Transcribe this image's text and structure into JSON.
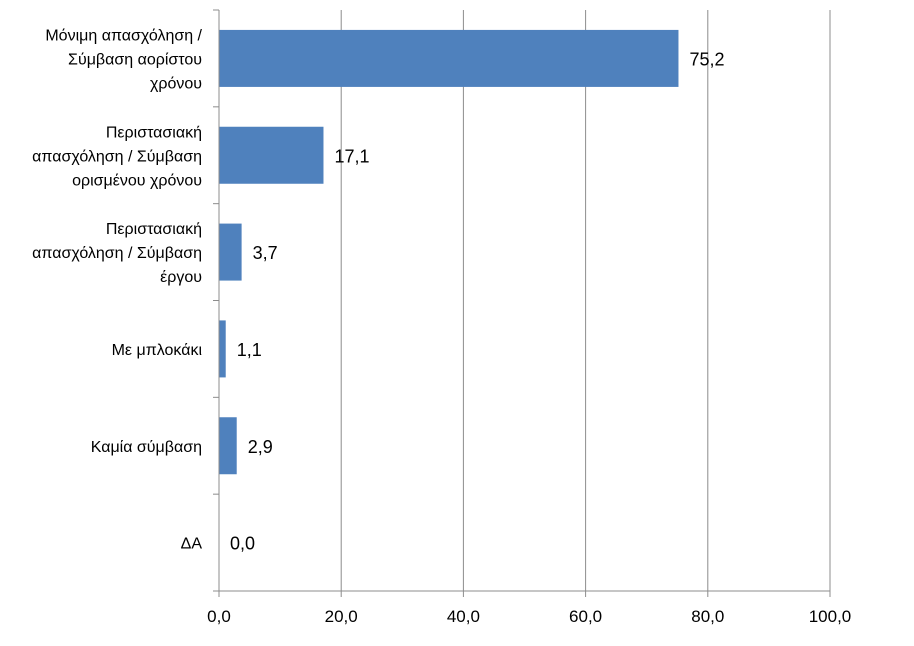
{
  "colors": {
    "bar": "#4F81BD",
    "gridline": "#8C8C8C",
    "axis": "#8C8C8C",
    "text": "#000000",
    "background": "#FFFFFF"
  },
  "chart_data": {
    "type": "bar",
    "orientation": "horizontal",
    "categories": [
      [
        "Μόνιμη απασχόληση /",
        "Σύμβαση αορίστου",
        "χρόνου"
      ],
      [
        "Περιστασιακή",
        "απασχόληση /  Σύμβαση",
        "ορισμένου χρόνου"
      ],
      [
        "Περιστασιακή",
        "απασχόληση / Σύμβαση",
        "έργου"
      ],
      [
        "Με μπλοκάκι"
      ],
      [
        "Καμία σύμβαση"
      ],
      [
        "ΔΑ"
      ]
    ],
    "values": [
      75.2,
      17.1,
      3.7,
      1.1,
      2.9,
      0.0
    ],
    "value_labels": [
      "75,2",
      "17,1",
      "3,7",
      "1,1",
      "2,9",
      "0,0"
    ],
    "xlim": [
      0,
      100
    ],
    "x_ticks": [
      0,
      20,
      40,
      60,
      80,
      100
    ],
    "x_tick_labels": [
      "0,0",
      "20,0",
      "40,0",
      "60,0",
      "80,0",
      "100,0"
    ],
    "grid": "vertical",
    "legend": "none",
    "title": "",
    "xlabel": "",
    "ylabel": ""
  }
}
